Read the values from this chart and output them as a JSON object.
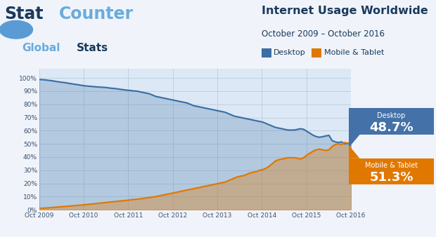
{
  "title": "Internet Usage Worldwide",
  "subtitle": "October 2009 – October 2016",
  "legend_desktop": "Desktop",
  "legend_mobile": "Mobile & Tablet",
  "desktop_label": "Desktop",
  "desktop_pct": "48.7%",
  "mobile_label": "Mobile & Tablet",
  "mobile_pct": "51.3%",
  "desktop_color": "#3a6ea5",
  "desktop_box_color": "#4472a8",
  "mobile_color": "#e07800",
  "mobile_box_color": "#e07800",
  "bg_color": "#f0f4fa",
  "chart_bg": "#dce8f5",
  "grid_color": "#c0d0e0",
  "title_color": "#1a3a5c",
  "subtitle_color": "#1a3a5c",
  "tick_color": "#3a5070",
  "x_ticks": [
    "Oct 2009",
    "Oct 2010",
    "Oct 2011",
    "Oct 2012",
    "Oct 2013",
    "Oct 2014",
    "Oct 2015",
    "Oct 2016"
  ],
  "desktop_data": [
    98.9,
    98.7,
    98.5,
    98.2,
    97.9,
    97.5,
    97.1,
    96.8,
    96.5,
    96.1,
    95.7,
    95.3,
    95.0,
    94.6,
    94.2,
    93.9,
    93.7,
    93.5,
    93.3,
    93.1,
    93.0,
    92.8,
    92.5,
    92.2,
    92.0,
    91.7,
    91.3,
    91.0,
    90.7,
    90.5,
    90.2,
    90.0,
    89.5,
    89.0,
    88.5,
    88.0,
    87.0,
    86.0,
    85.5,
    85.0,
    84.5,
    84.0,
    83.5,
    83.0,
    82.5,
    82.0,
    81.5,
    81.0,
    80.0,
    79.0,
    78.5,
    78.0,
    77.5,
    77.0,
    76.5,
    76.0,
    75.5,
    75.0,
    74.5,
    74.0,
    73.0,
    72.0,
    71.0,
    70.5,
    70.0,
    69.5,
    69.0,
    68.5,
    68.0,
    67.5,
    67.0,
    66.5,
    65.5,
    64.5,
    63.5,
    62.5,
    62.0,
    61.5,
    61.0,
    60.5,
    60.5,
    60.5,
    61.0,
    61.5,
    61.0,
    59.5,
    58.0,
    56.5,
    55.5,
    55.0,
    55.5,
    56.0,
    56.5,
    52.5,
    51.5,
    51.0,
    51.5,
    50.0,
    50.5,
    48.7
  ],
  "mobile_data": [
    1.1,
    1.2,
    1.3,
    1.5,
    1.7,
    1.9,
    2.1,
    2.3,
    2.5,
    2.7,
    2.9,
    3.1,
    3.3,
    3.5,
    3.7,
    4.0,
    4.2,
    4.5,
    4.7,
    5.0,
    5.2,
    5.5,
    5.8,
    6.0,
    6.2,
    6.5,
    6.7,
    7.0,
    7.2,
    7.5,
    7.8,
    8.0,
    8.3,
    8.6,
    9.0,
    9.3,
    9.7,
    10.0,
    10.5,
    11.0,
    11.5,
    12.0,
    12.5,
    13.0,
    13.5,
    14.0,
    14.5,
    15.0,
    15.5,
    16.0,
    16.5,
    17.0,
    17.5,
    18.0,
    18.5,
    19.0,
    19.5,
    20.0,
    20.5,
    21.0,
    22.0,
    23.0,
    24.0,
    25.0,
    25.5,
    26.0,
    27.0,
    28.0,
    28.5,
    29.0,
    30.0,
    30.5,
    31.5,
    33.0,
    35.0,
    37.0,
    38.0,
    38.5,
    39.0,
    39.5,
    39.5,
    39.5,
    39.0,
    38.5,
    39.5,
    41.5,
    43.0,
    44.5,
    45.5,
    46.0,
    45.5,
    45.0,
    45.5,
    48.0,
    49.5,
    50.0,
    49.5,
    51.0,
    50.5,
    51.3
  ]
}
